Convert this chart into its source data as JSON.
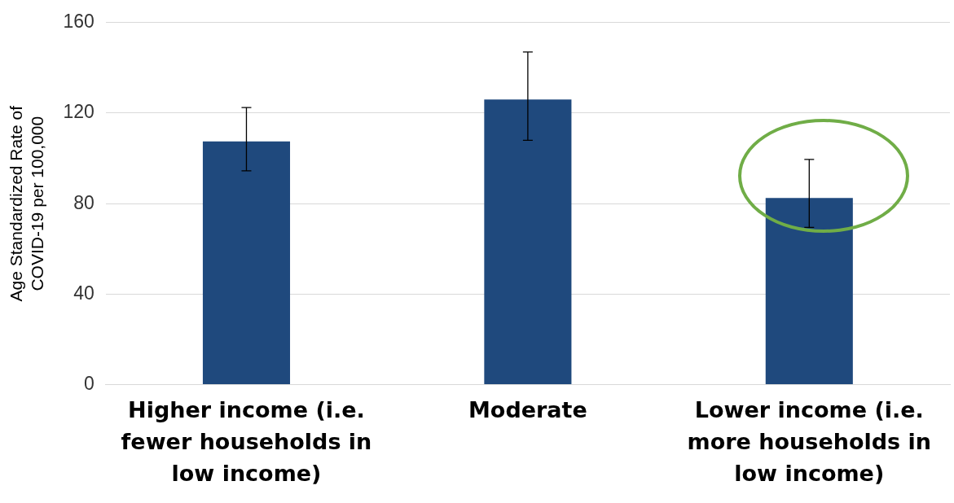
{
  "chart_data": {
    "type": "bar",
    "ylabel": "Age Standardized Rate of\nCOVID-19 per 100,000",
    "categories": [
      "Higher income (i.e. fewer households in low income)",
      "Moderate",
      "Lower income (i.e. more households in low income)"
    ],
    "values": [
      107.5,
      126,
      82.5
    ],
    "errors": [
      [
        94.5,
        122.5
      ],
      [
        108,
        147
      ],
      [
        69.5,
        99.5
      ]
    ],
    "color": "#1f497d",
    "ylim": [
      0,
      160
    ],
    "yticks": [
      0,
      40,
      80,
      120,
      160
    ],
    "grid": "y"
  }
}
